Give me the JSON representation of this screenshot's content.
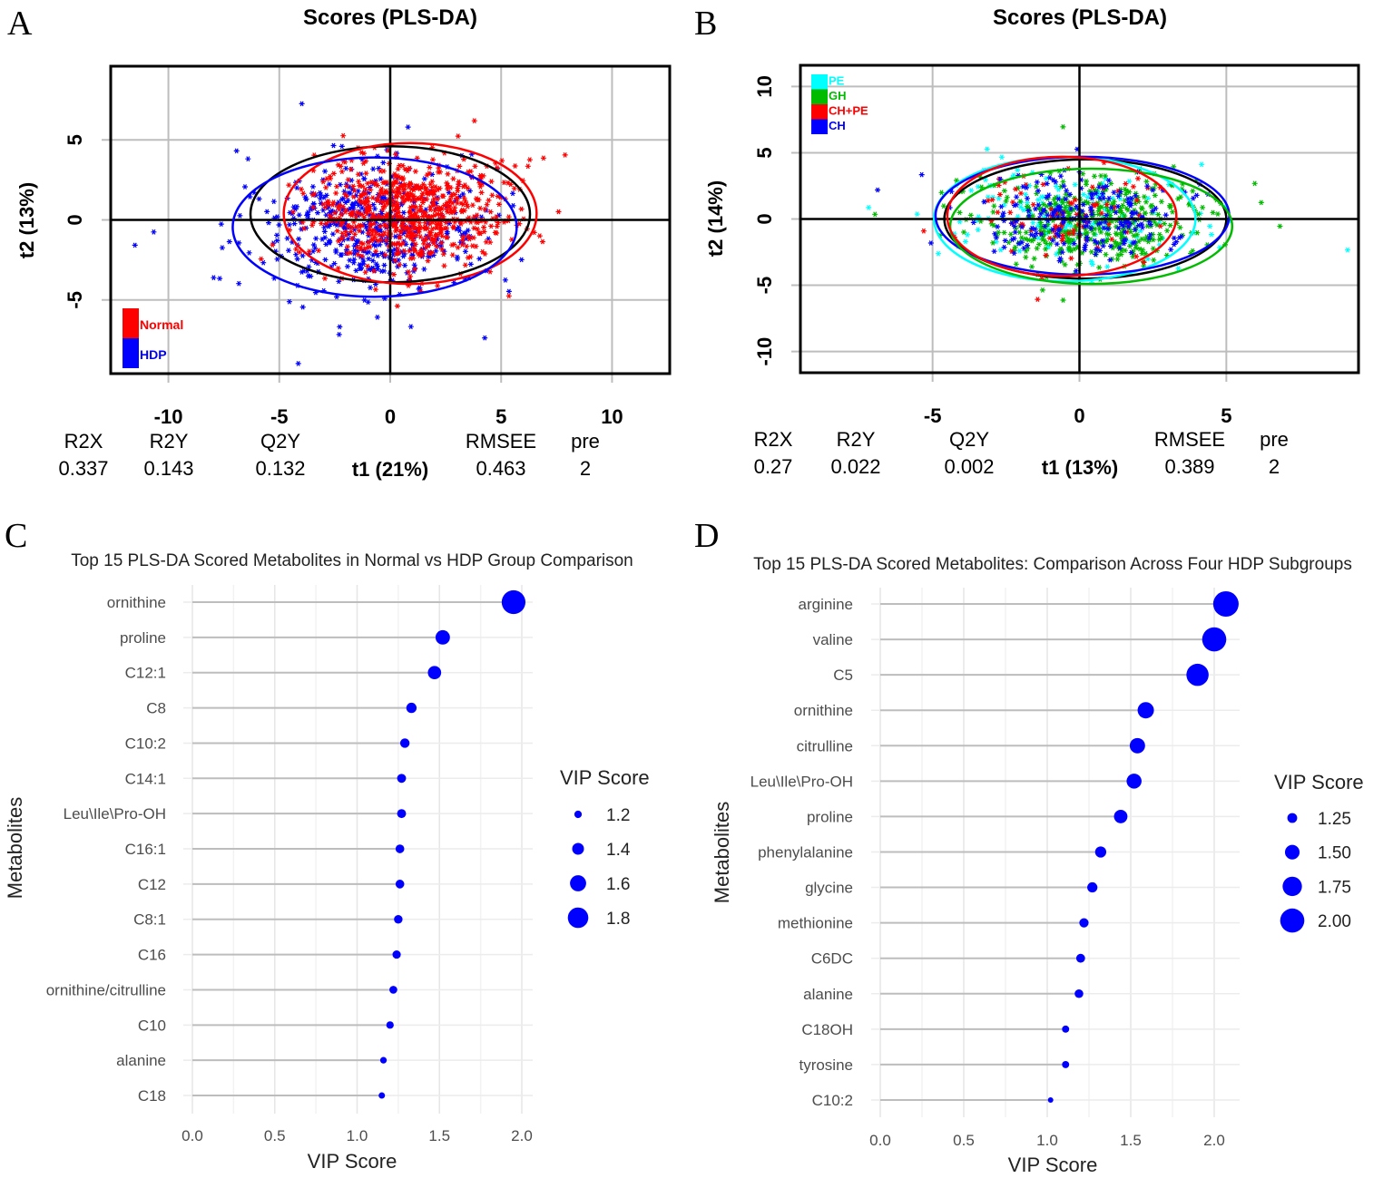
{
  "panel_labels": [
    "A",
    "B",
    "C",
    "D"
  ],
  "chart_data": [
    {
      "type": "scatter",
      "panel": "A",
      "title": "Scores (PLS-DA)",
      "xlabel": "t1 (21%)",
      "ylabel": "t2 (13%)",
      "xlim": [
        -12.6,
        12.6
      ],
      "ylim": [
        -9.6,
        9.6
      ],
      "xticks": [
        -10,
        -5,
        0,
        5,
        10
      ],
      "yticks": [
        -5,
        0,
        5
      ],
      "grid": true,
      "legend_position": "bottom-left",
      "series": [
        {
          "name": "HDP",
          "color": "#0000ff",
          "center": [
            -0.8,
            -0.5
          ],
          "spread": [
            2.4,
            1.9
          ],
          "count": 520
        },
        {
          "name": "Normal",
          "color": "#ff0000",
          "center": [
            1.0,
            0.4
          ],
          "spread": [
            2.1,
            1.7
          ],
          "count": 720
        }
      ],
      "ellipses": [
        {
          "group": "all",
          "color": "#000000",
          "center": [
            0.0,
            0.35
          ],
          "radii": [
            6.3,
            4.25
          ]
        },
        {
          "group": "Normal",
          "color": "#ff0000",
          "center": [
            0.9,
            0.4
          ],
          "radii": [
            5.7,
            4.4
          ]
        },
        {
          "group": "HDP",
          "color": "#0000ff",
          "center": [
            -0.7,
            -0.45
          ],
          "radii": [
            6.4,
            4.35
          ]
        }
      ],
      "stats": {
        "headers": [
          "R2X",
          "R2Y",
          "Q2Y",
          "RMSEE",
          "pre"
        ],
        "values": [
          "0.337",
          "0.143",
          "0.132",
          "0.463",
          "2"
        ]
      }
    },
    {
      "type": "scatter",
      "panel": "B",
      "title": "Scores (PLS-DA)",
      "xlabel": "t1 (13%)",
      "ylabel": "t2 (14%)",
      "xlim": [
        -9.5,
        9.5
      ],
      "ylim": [
        -11.6,
        11.6
      ],
      "xticks": [
        -5,
        0,
        5
      ],
      "yticks": [
        -10,
        -5,
        0,
        5,
        10
      ],
      "grid": true,
      "legend_position": "top-left",
      "series": [
        {
          "name": "PE",
          "color": "#00ffff",
          "center": [
            -0.3,
            0.0
          ],
          "spread": [
            1.9,
            1.6
          ],
          "count": 160
        },
        {
          "name": "GH",
          "color": "#00bb00",
          "center": [
            0.3,
            -0.3
          ],
          "spread": [
            1.9,
            1.6
          ],
          "count": 420
        },
        {
          "name": "CH+PE",
          "color": "#ff0000",
          "center": [
            -0.5,
            0.1
          ],
          "spread": [
            1.6,
            1.6
          ],
          "count": 90
        },
        {
          "name": "CH",
          "color": "#0000ff",
          "center": [
            -0.2,
            0.2
          ],
          "spread": [
            1.8,
            1.6
          ],
          "count": 220
        }
      ],
      "ellipses": [
        {
          "group": "all",
          "color": "#000000",
          "center": [
            0.2,
            0.0
          ],
          "radii": [
            4.8,
            4.5
          ]
        },
        {
          "group": "PE",
          "color": "#00ffff",
          "center": [
            -0.5,
            0.0
          ],
          "radii": [
            4.45,
            4.7
          ]
        },
        {
          "group": "CH",
          "color": "#0000ff",
          "center": [
            0.1,
            0.25
          ],
          "radii": [
            5.0,
            4.45
          ]
        },
        {
          "group": "GH",
          "color": "#00bb00",
          "center": [
            0.4,
            -0.55
          ],
          "radii": [
            4.8,
            4.35
          ]
        },
        {
          "group": "CH+PE",
          "color": "#ff0000",
          "center": [
            -0.6,
            0.2
          ],
          "radii": [
            3.9,
            4.5
          ]
        }
      ],
      "stats": {
        "headers": [
          "R2X",
          "R2Y",
          "Q2Y",
          "RMSEE",
          "pre"
        ],
        "values": [
          "0.27",
          "0.022",
          "0.002",
          "0.389",
          "2"
        ]
      }
    },
    {
      "type": "lollipop",
      "panel": "C",
      "title": "Top 15 PLS-DA Scored Metabolites in Normal vs HDP Group Comparison",
      "xlabel": "VIP Score",
      "ylabel": "Metabolites",
      "xlim": [
        0,
        2.0
      ],
      "xticks": [
        "0.0",
        "0.5",
        "1.0",
        "1.5",
        "2.0"
      ],
      "color": "#0000ff",
      "categories": [
        "ornithine",
        "proline",
        "C12:1",
        "C8",
        "C10:2",
        "C14:1",
        "Leu\\Ile\\Pro-OH",
        "C16:1",
        "C12",
        "C8:1",
        "C16",
        "ornithine/citrulline",
        "C10",
        "alanine",
        "C18"
      ],
      "values": [
        1.95,
        1.52,
        1.47,
        1.33,
        1.29,
        1.27,
        1.27,
        1.26,
        1.26,
        1.25,
        1.24,
        1.22,
        1.2,
        1.16,
        1.15
      ],
      "legend": {
        "title": "VIP Score",
        "sizes": [
          1.2,
          1.4,
          1.6,
          1.8
        ],
        "labels": [
          "1.2",
          "1.4",
          "1.6",
          "1.8"
        ],
        "position": "right"
      }
    },
    {
      "type": "lollipop",
      "panel": "D",
      "title": "Top 15 PLS-DA Scored Metabolites: Comparison Across Four HDP Subgroups",
      "xlabel": "VIP Score",
      "ylabel": "Metabolites",
      "xlim": [
        0,
        2.1
      ],
      "xticks": [
        "0.0",
        "0.5",
        "1.0",
        "1.5",
        "2.0"
      ],
      "color": "#0000ff",
      "categories": [
        "arginine",
        "valine",
        "C5",
        "ornithine",
        "citrulline",
        "Leu\\Ile\\Pro-OH",
        "proline",
        "phenylalanine",
        "glycine",
        "methionine",
        "C6DC",
        "alanine",
        "C18OH",
        "tyrosine",
        "C10:2"
      ],
      "values": [
        2.07,
        2.0,
        1.9,
        1.59,
        1.54,
        1.52,
        1.44,
        1.32,
        1.27,
        1.22,
        1.2,
        1.19,
        1.11,
        1.11,
        1.02
      ],
      "legend": {
        "title": "VIP Score",
        "sizes": [
          1.25,
          1.5,
          1.75,
          2.0
        ],
        "labels": [
          "1.25",
          "1.50",
          "1.75",
          "2.00"
        ],
        "position": "right"
      }
    }
  ]
}
